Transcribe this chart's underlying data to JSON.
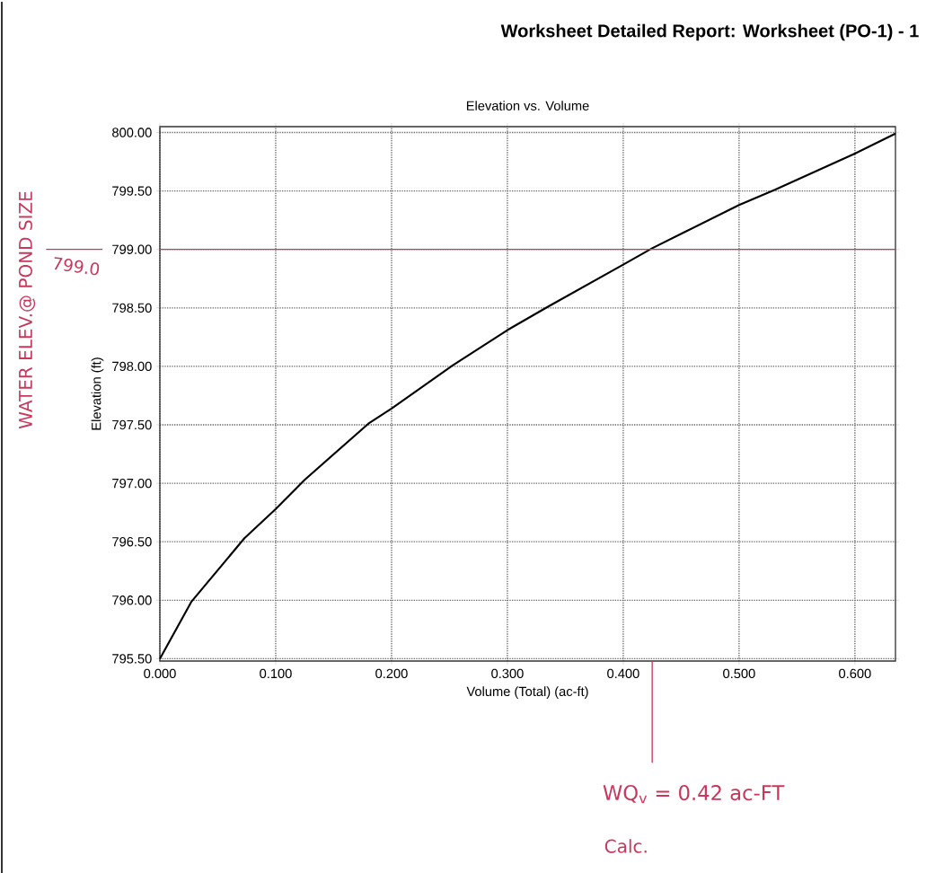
{
  "chart_data": {
    "type": "line",
    "title": "Worksheet Detailed Report:  Worksheet (PO-1) - 1",
    "subtitle": "Elevation vs. Volume",
    "xlabel": "Volume (Total) (ac-ft)",
    "ylabel": "Elevation (ft)",
    "x": [
      0,
      0.0274,
      0.073,
      0.1,
      0.125,
      0.18,
      0.2,
      0.253,
      0.3,
      0.335,
      0.4,
      0.425,
      0.5,
      0.531,
      0.6,
      0.635
    ],
    "series": [
      {
        "color": "#000000",
        "values": [
          795.5,
          795.99,
          796.53,
          796.78,
          797.03,
          797.51,
          797.64,
          798.01,
          798.31,
          798.51,
          798.87,
          799.01,
          799.38,
          799.51,
          799.82,
          799.99
        ]
      }
    ],
    "xlim": [
      0,
      0.635
    ],
    "ylim": [
      795.48,
      800.05
    ],
    "xticks": [
      {
        "value": 0,
        "label": "0.000"
      },
      {
        "value": 0.1,
        "label": "0.100"
      },
      {
        "value": 0.2,
        "label": "0.200"
      },
      {
        "value": 0.3,
        "label": "0.300"
      },
      {
        "value": 0.4,
        "label": "0.400"
      },
      {
        "value": 0.5,
        "label": "0.500"
      },
      {
        "value": 0.6,
        "label": "0.600"
      }
    ],
    "yticks": [
      {
        "value": 795.5,
        "label": "795.50"
      },
      {
        "value": 796,
        "label": "796.00"
      },
      {
        "value": 796.5,
        "label": "796.50"
      },
      {
        "value": 797,
        "label": "797.00"
      },
      {
        "value": 797.5,
        "label": "797.50"
      },
      {
        "value": 798,
        "label": "798.00"
      },
      {
        "value": 798.5,
        "label": "798.50"
      },
      {
        "value": 799,
        "label": "799.00"
      },
      {
        "value": 799.5,
        "label": "799.50"
      },
      {
        "value": 800,
        "label": "800.00"
      }
    ],
    "grid": true,
    "ref_lines": [
      {
        "axis": "y",
        "value": 799.0,
        "label": "799.0",
        "color": "#c8385c"
      },
      {
        "axis": "x",
        "value": 0.425,
        "label": "WQ$_{v}$ = 0.42 ac-FT",
        "color": "#c8385c"
      }
    ],
    "annotations": [
      "WATER ELEV.@ POND SIZE",
      "Calc."
    ]
  }
}
